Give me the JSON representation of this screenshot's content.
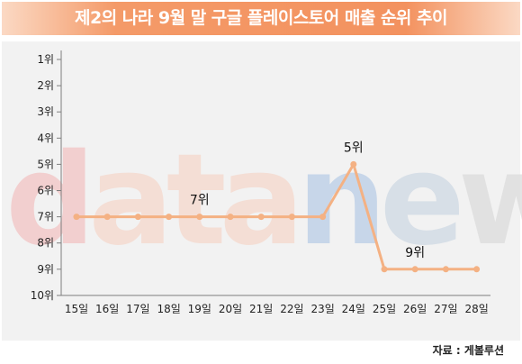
{
  "title": "제2의 나라 9월 말 구글 플레이스토어 매출 순위 추이",
  "source": "자료 : 게볼루션",
  "watermark": "datanews",
  "colors": {
    "accent": "#f3925f",
    "line": "#f4b183",
    "background": "#f2f2f2"
  },
  "chart_data": {
    "type": "line",
    "title": "제2의 나라 9월 말 구글 플레이스토어 매출 순위 추이",
    "xlabel": "",
    "ylabel": "",
    "categories": [
      "15일",
      "16일",
      "17일",
      "18일",
      "19일",
      "20일",
      "21일",
      "22일",
      "23일",
      "24일",
      "25일",
      "26일",
      "27일",
      "28일"
    ],
    "series": [
      {
        "values": [
          7,
          7,
          7,
          7,
          7,
          7,
          7,
          7,
          7,
          5,
          9,
          9,
          9,
          9
        ]
      }
    ],
    "y_axis": {
      "range": [
        1,
        10
      ],
      "inverted": true,
      "tick_labels": [
        "1위",
        "2위",
        "3위",
        "4위",
        "5위",
        "6위",
        "7위",
        "8위",
        "9위",
        "10위"
      ]
    },
    "annotations": [
      {
        "category": "19일",
        "text": "7위"
      },
      {
        "category": "24일",
        "text": "5위"
      },
      {
        "category": "26일",
        "text": "9위"
      }
    ],
    "grid": false,
    "legend": "none"
  }
}
